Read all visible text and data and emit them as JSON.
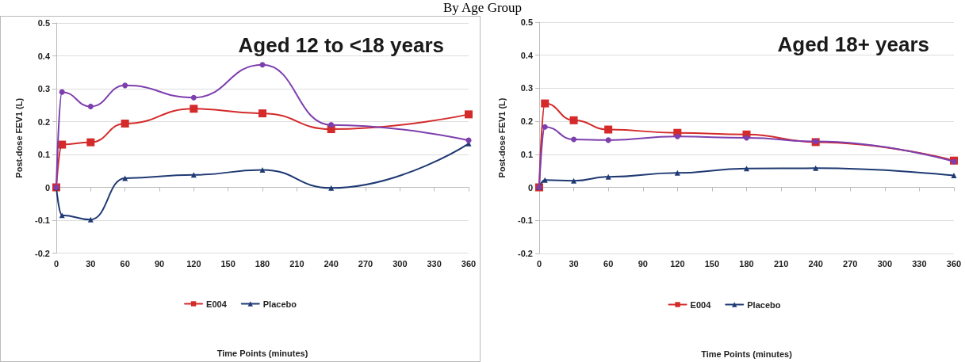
{
  "chart_data": [
    {
      "type": "line",
      "title": "Aged 12 to <18 years",
      "xlabel": "Time Points (minutes)",
      "ylabel": "Post-dose FEV1 (L)",
      "annotations": [
        "By Age Group"
      ],
      "x": [
        0,
        5,
        30,
        60,
        120,
        180,
        240,
        360
      ],
      "xlim": [
        0,
        360
      ],
      "xticks": [
        0,
        30,
        60,
        90,
        120,
        150,
        180,
        210,
        240,
        270,
        300,
        330,
        360
      ],
      "ylim": [
        -0.2,
        0.5
      ],
      "yticks": [
        -0.2,
        -0.1,
        0,
        0.1,
        0.2,
        0.3,
        0.4,
        0.5
      ],
      "grid": "y",
      "legend": "bottom",
      "line_style": "solid",
      "series": [
        {
          "name": "E004",
          "color": "#d42a2a",
          "marker": "square",
          "values": [
            0,
            0.13,
            0.137,
            0.194,
            0.239,
            0.225,
            0.177,
            0.222
          ]
        },
        {
          "name": "Placebo",
          "color": "#1f3a73",
          "marker": "triangle",
          "values": [
            0,
            -0.085,
            -0.098,
            0.028,
            0.038,
            0.053,
            -0.002,
            0.133
          ]
        },
        {
          "color": "#7d3fae",
          "marker": "circle",
          "values": [
            0,
            0.29,
            0.246,
            0.31,
            0.273,
            0.373,
            0.19,
            0.143
          ]
        }
      ]
    },
    {
      "type": "line",
      "title": "Aged 18+ years",
      "xlabel": "Time Points (minutes)",
      "ylabel": "Post-dose FEV1 (L)",
      "x": [
        0,
        5,
        30,
        60,
        120,
        180,
        240,
        360
      ],
      "xlim": [
        0,
        360
      ],
      "xticks": [
        0,
        30,
        60,
        90,
        120,
        150,
        180,
        210,
        240,
        270,
        300,
        330,
        360
      ],
      "ylim": [
        -0.2,
        0.5
      ],
      "yticks": [
        -0.2,
        -0.1,
        0,
        0.1,
        0.2,
        0.3,
        0.4,
        0.5
      ],
      "grid": "y",
      "legend": "bottom",
      "line_style": "solid",
      "series": [
        {
          "name": "E004",
          "color": "#d42a2a",
          "marker": "square",
          "values": [
            0,
            0.254,
            0.203,
            0.175,
            0.165,
            0.16,
            0.137,
            0.081
          ]
        },
        {
          "name": "Placebo",
          "color": "#1f3a73",
          "marker": "triangle",
          "values": [
            0,
            0.022,
            0.02,
            0.032,
            0.044,
            0.057,
            0.058,
            0.036
          ]
        },
        {
          "color": "#7d3fae",
          "marker": "circle",
          "values": [
            0,
            0.183,
            0.145,
            0.143,
            0.154,
            0.15,
            0.139,
            0.078
          ]
        }
      ]
    }
  ]
}
